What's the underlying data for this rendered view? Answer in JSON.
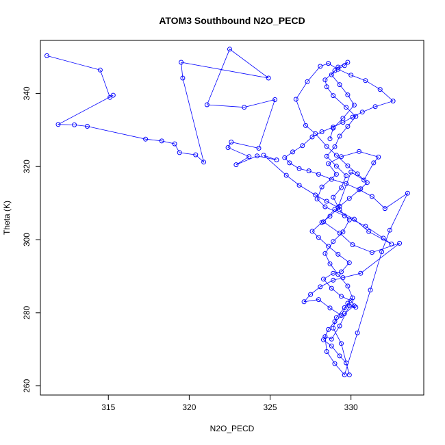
{
  "chart_data": {
    "type": "line",
    "title": "ATOM3 Southbound N2O_PECD",
    "xlabel": "N2O_PECD",
    "ylabel": "Theta (K)",
    "xlim": [
      310.8,
      334.5
    ],
    "ylim": [
      257.5,
      354.5
    ],
    "xticks": [
      315,
      320,
      325,
      330
    ],
    "yticks": [
      260,
      280,
      300,
      320,
      340
    ],
    "grid": false,
    "markers": "open-circle",
    "line_color": "#0000ff",
    "series": [
      {
        "x": [
          311.2,
          314.5,
          315.1,
          315.3,
          311.9,
          312.9,
          313.7,
          317.3,
          318.3,
          319.1,
          319.4,
          320.4,
          320.9,
          319.6,
          319.5,
          324.9,
          322.5,
          321.1,
          323.4,
          325.3,
          324.3,
          322.6,
          322.4,
          323.7,
          322.9,
          324.2,
          325.4,
          324.6,
          326.0,
          326.8,
          327.8,
          328.5,
          329.2,
          330.0,
          330.8,
          331.4,
          331.7,
          330.5,
          329.4,
          328.6,
          329.1,
          328.2,
          327.9,
          328.4,
          329.6,
          330.9,
          332.0,
          332.5,
          331.1,
          330.2,
          329.0,
          328.3,
          329.3,
          330.1,
          331.3,
          333.0,
          330.6,
          329.5,
          328.9,
          328.1,
          327.5,
          327.1,
          328.0,
          328.7,
          329.4,
          329.8,
          330.3,
          329.9,
          329.3,
          328.8,
          328.4,
          328.5,
          329.0,
          329.6,
          330.4,
          331.2,
          331.9,
          332.4,
          333.5,
          332.1,
          331.3,
          330.5,
          329.7,
          328.8,
          328.0,
          327.4,
          326.8,
          326.2,
          325.9,
          326.4,
          327.0,
          327.6,
          328.2,
          328.9,
          329.5,
          330.1,
          330.7,
          331.5,
          332.6,
          331.8,
          330.9,
          330.0,
          329.2,
          328.6,
          328.1,
          327.3,
          326.6,
          327.2,
          327.8,
          328.5,
          329.1,
          329.8,
          330.4,
          331.0,
          330.6,
          329.9,
          329.3,
          328.7,
          328.2,
          327.6,
          328.0,
          328.6,
          329.2,
          329.9,
          329.4,
          328.9,
          328.3,
          328.8,
          329.4,
          330.0,
          330.2,
          329.6,
          329.0,
          328.6,
          328.3,
          328.8,
          329.3,
          329.7,
          329.9,
          329.4,
          328.9,
          329.1,
          329.6,
          330.1,
          329.8,
          329.2,
          328.7,
          328.4,
          328.9,
          329.5,
          329.9,
          329.3,
          328.9,
          329.4,
          329.7,
          329.1,
          328.5,
          329.0,
          329.3,
          329.8,
          330.3,
          329.7,
          328.9,
          328.5,
          328.4,
          329.0,
          329.6,
          329.8,
          329.2,
          328.8,
          329.3,
          329.8,
          330.2,
          329.5,
          328.9,
          328.7
        ],
        "y": [
          350.3,
          346.4,
          338.9,
          339.5,
          331.5,
          331.4,
          331.0,
          327.5,
          327.0,
          326.2,
          323.8,
          323.2,
          321.2,
          344.2,
          348.5,
          344.2,
          352.1,
          336.9,
          336.2,
          338.3,
          325.0,
          326.7,
          325.2,
          322.7,
          320.5,
          322.9,
          321.8,
          323.1,
          317.6,
          314.9,
          312.2,
          310.5,
          308.8,
          318.5,
          316.3,
          321.0,
          322.6,
          324.1,
          322.7,
          320.8,
          317.9,
          314.4,
          311.1,
          309.0,
          306.5,
          303.7,
          300.4,
          298.8,
          302.2,
          305.6,
          308.3,
          304.9,
          301.8,
          298.6,
          296.5,
          299.0,
          290.8,
          289.6,
          288.9,
          287.1,
          285.0,
          283.0,
          283.6,
          281.3,
          279.3,
          282.6,
          281.5,
          281.9,
          276.4,
          272.8,
          273.5,
          269.4,
          266.1,
          263.0,
          274.5,
          286.2,
          296.7,
          302.6,
          312.7,
          308.5,
          311.8,
          313.7,
          315.3,
          316.5,
          317.9,
          318.8,
          319.4,
          321.0,
          322.4,
          324.0,
          325.7,
          328.1,
          329.5,
          330.8,
          332.1,
          333.5,
          334.9,
          336.4,
          337.9,
          341.1,
          343.5,
          345.0,
          346.6,
          348.2,
          347.4,
          343.2,
          338.4,
          331.2,
          329.0,
          325.5,
          323.1,
          320.2,
          318.0,
          315.6,
          313.9,
          311.3,
          309.1,
          306.4,
          304.7,
          302.3,
          300.6,
          298.2,
          296.0,
          293.7,
          291.2,
          290.8,
          289.2,
          286.7,
          284.5,
          283.3,
          281.9,
          279.8,
          277.6,
          275.4,
          272.6,
          270.9,
          268.2,
          266.3,
          263.0,
          271.6,
          275.8,
          278.7,
          281.4,
          284.1,
          287.3,
          290.5,
          293.4,
          296.2,
          299.5,
          302.1,
          305.4,
          308.2,
          311.6,
          314.2,
          317.5,
          320.1,
          322.8,
          325.4,
          328.3,
          331.0,
          333.7,
          336.2,
          339.4,
          341.8,
          343.7,
          346.2,
          347.6,
          348.5,
          347.2,
          345.1,
          342.4,
          339.6,
          336.8,
          333.2,
          330.5,
          327.6
        ]
      }
    ]
  }
}
